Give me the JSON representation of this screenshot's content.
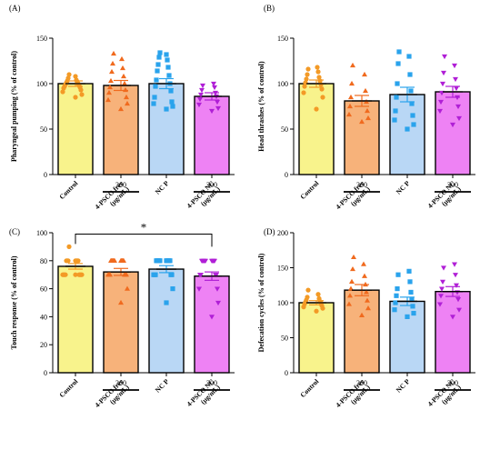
{
  "figure": {
    "colors": {
      "control": "#f8f38c",
      "free": "#f7b27a",
      "ncp": "#b9d7f5",
      "nc": "#ee82f4",
      "pt_control": "#f39a26",
      "pt_free": "#f06a1e",
      "pt_ncp": "#2aa3ec",
      "pt_nc": "#b01fd6"
    },
    "marker_shapes": [
      "circle",
      "triangle-up",
      "square",
      "triangle-down"
    ]
  },
  "chart_data": [
    {
      "type": "bar",
      "panel": "(A)",
      "ylabel": "Pharyngeal pumping (% of control)",
      "ylim": [
        0,
        150
      ],
      "yticks": [
        "0",
        "50",
        "100",
        "150"
      ],
      "categories": [
        "Control",
        "4-PSCO free\n(μg/mL)",
        "NC P",
        "4-PSCO NC\n(μg/mL)"
      ],
      "dose_label": "300",
      "values": [
        100,
        98,
        100,
        86
      ],
      "errors": [
        3,
        5.5,
        5.5,
        4
      ],
      "points": [
        [
          85,
          88,
          91,
          93,
          95,
          96,
          97,
          98,
          99,
          100,
          101,
          102,
          103,
          104,
          106,
          108,
          110
        ],
        [
          72,
          78,
          82,
          85,
          90,
          93,
          96,
          100,
          103,
          108,
          113,
          117,
          122,
          127,
          133
        ],
        [
          72,
          75,
          78,
          80,
          85,
          92,
          97,
          100,
          104,
          109,
          114,
          118,
          121,
          126,
          129,
          132,
          134
        ],
        [
          70,
          73,
          77,
          80,
          83,
          86,
          88,
          90,
          93,
          96,
          98,
          100
        ]
      ]
    },
    {
      "type": "bar",
      "panel": "(B)",
      "ylabel": "Head thrashes (% of control)",
      "ylim": [
        0,
        150
      ],
      "yticks": [
        "0",
        "50",
        "100",
        "150"
      ],
      "categories": [
        "Control",
        "4-PSCO free\n(μg/mL)",
        "NC P",
        "4-PSCO NC\n(μg/mL)"
      ],
      "dose_label": "300",
      "values": [
        100,
        81,
        88,
        91
      ],
      "errors": [
        4,
        6,
        8,
        6
      ],
      "points": [
        [
          72,
          85,
          90,
          94,
          97,
          99,
          101,
          103,
          105,
          107,
          110,
          113,
          116,
          118
        ],
        [
          58,
          62,
          66,
          70,
          75,
          80,
          85,
          92,
          100,
          110,
          120
        ],
        [
          50,
          55,
          60,
          65,
          70,
          78,
          85,
          92,
          100,
          110,
          122,
          130,
          135
        ],
        [
          55,
          62,
          70,
          75,
          80,
          85,
          90,
          95,
          100,
          105,
          112,
          120,
          130
        ]
      ]
    },
    {
      "type": "bar",
      "panel": "(C)",
      "ylabel": "Touch response (% of control)",
      "ylim": [
        0,
        100
      ],
      "yticks": [
        "0",
        "20",
        "40",
        "60",
        "80",
        "100"
      ],
      "categories": [
        "Control",
        "4-PSCO free\n(μg/mL)",
        "NC P",
        "4-PSCO NC\n(μg/mL)"
      ],
      "dose_label": "300",
      "significance": "*",
      "values": [
        76,
        72,
        74,
        69
      ],
      "errors": [
        2,
        2.5,
        2.5,
        3
      ],
      "points": [
        [
          70,
          70,
          70,
          70,
          70,
          70,
          70,
          70,
          70,
          80,
          80,
          80,
          80,
          80,
          80,
          80,
          90
        ],
        [
          50,
          60,
          70,
          70,
          70,
          70,
          70,
          70,
          80,
          80,
          80,
          80,
          80,
          80,
          80,
          80,
          80
        ],
        [
          50,
          60,
          70,
          70,
          70,
          70,
          70,
          80,
          80,
          80,
          80,
          80,
          80,
          80,
          80,
          80,
          80
        ],
        [
          40,
          50,
          60,
          60,
          70,
          70,
          70,
          70,
          80,
          80,
          80,
          80,
          80,
          80,
          80,
          80,
          80
        ]
      ]
    },
    {
      "type": "bar",
      "panel": "(D)",
      "ylabel": "Defecation cycles (% of control)",
      "ylim": [
        0,
        200
      ],
      "yticks": [
        "0",
        "50",
        "100",
        "150",
        "200"
      ],
      "categories": [
        "Control",
        "4-PSCO free\n(μg/mL)",
        "NC P",
        "4-PSCO NC\n(μg/mL)"
      ],
      "dose_label": "300",
      "values": [
        100,
        118,
        102,
        116
      ],
      "errors": [
        3,
        8,
        6,
        7
      ],
      "points": [
        [
          88,
          92,
          94,
          96,
          98,
          100,
          101,
          102,
          104,
          106,
          108,
          112,
          118
        ],
        [
          82,
          92,
          98,
          103,
          110,
          115,
          120,
          126,
          130,
          138,
          148,
          155,
          165
        ],
        [
          80,
          85,
          90,
          95,
          100,
          105,
          110,
          115,
          120,
          130,
          140,
          145
        ],
        [
          80,
          90,
          98,
          105,
          110,
          115,
          120,
          125,
          130,
          140,
          150,
          155
        ]
      ]
    }
  ]
}
